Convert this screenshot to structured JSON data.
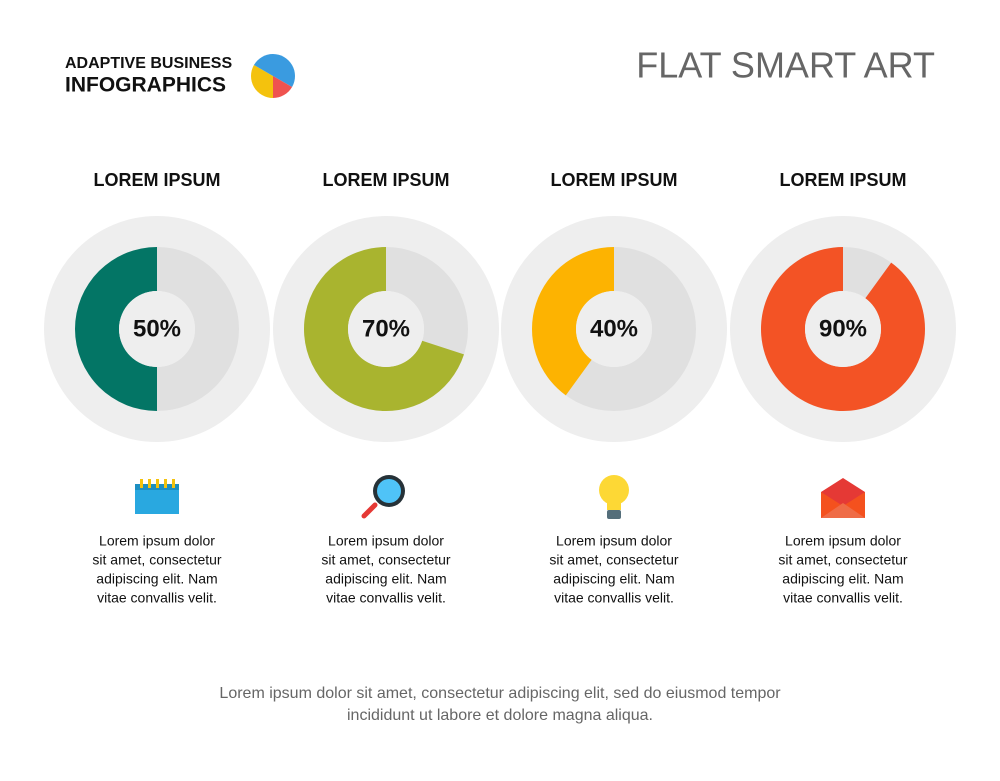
{
  "header": {
    "brand_line1": "ADAPTIVE BUSINESS",
    "brand_line2": "INFOGRAPHICS",
    "title": "FLAT SMART ART"
  },
  "chart_data": [
    {
      "type": "donut",
      "title": "LOREM IPSUM",
      "values": [
        50
      ],
      "value_labels": [
        "50%"
      ],
      "color": "#037565"
    },
    {
      "type": "donut",
      "title": "LOREM IPSUM",
      "values": [
        70
      ],
      "value_labels": [
        "70%"
      ],
      "color": "#a9b42f"
    },
    {
      "type": "donut",
      "title": "LOREM IPSUM",
      "values": [
        40
      ],
      "value_labels": [
        "40%"
      ],
      "color": "#fdb301"
    },
    {
      "type": "donut",
      "title": "LOREM IPSUM",
      "values": [
        90
      ],
      "value_labels": [
        "90%"
      ],
      "color": "#f35325"
    }
  ],
  "descriptions": [
    [
      "Lorem ipsum dolor",
      "sit amet, consectetur",
      "adipiscing elit. Nam",
      "vitae convallis velit."
    ],
    [
      "Lorem ipsum dolor",
      "sit amet, consectetur",
      "adipiscing elit. Nam",
      "vitae convallis velit."
    ],
    [
      "Lorem ipsum dolor",
      "sit amet, consectetur",
      "adipiscing elit. Nam",
      "vitae convallis velit."
    ],
    [
      "Lorem ipsum dolor",
      "sit amet, consectetur",
      "adipiscing elit. Nam",
      "vitae convallis velit."
    ]
  ],
  "footer": [
    "Lorem ipsum dolor sit amet, consectetur adipiscing elit, sed do eiusmod tempor",
    "incididunt ut labore et dolore magna aliqua."
  ]
}
